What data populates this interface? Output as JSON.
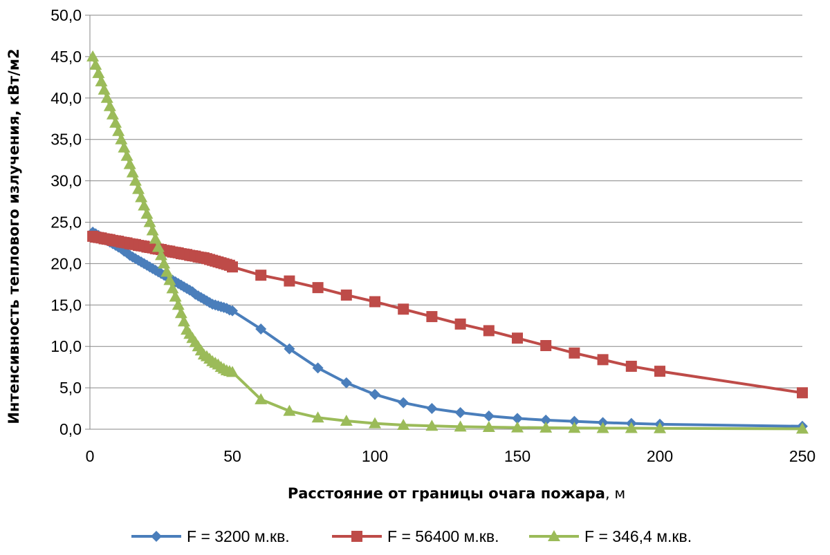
{
  "chart_data": {
    "type": "line",
    "title": "",
    "xlabel": "Расстояние от границы очага пожара",
    "xlabel_unit": ", м",
    "ylabel": "Интенсивность теплового излучения, кВт/м2",
    "xlim": [
      0,
      250
    ],
    "ylim": [
      0,
      50
    ],
    "x_ticks": [
      "0",
      "50",
      "100",
      "150",
      "200",
      "250"
    ],
    "y_ticks": [
      "0,0",
      "5,0",
      "10,0",
      "15,0",
      "20,0",
      "25,0",
      "30,0",
      "35,0",
      "40,0",
      "45,0",
      "50,0"
    ],
    "grid": "horizontal",
    "legend_position": "bottom",
    "series": [
      {
        "name": "F = 3200 м.кв.",
        "color": "#4a7ebb",
        "marker": "diamond",
        "x": [
          1,
          2,
          3,
          4,
          5,
          6,
          7,
          8,
          9,
          10,
          11,
          12,
          13,
          14,
          15,
          16,
          17,
          18,
          19,
          20,
          21,
          22,
          23,
          24,
          25,
          26,
          27,
          28,
          29,
          30,
          31,
          32,
          33,
          34,
          35,
          36,
          37,
          38,
          39,
          40,
          41,
          42,
          43,
          44,
          45,
          46,
          47,
          48,
          49,
          50,
          60,
          70,
          80,
          90,
          100,
          110,
          120,
          130,
          140,
          150,
          160,
          170,
          180,
          190,
          200,
          250
        ],
        "y": [
          23.8,
          23.6,
          23.4,
          23.2,
          23.0,
          22.8,
          22.6,
          22.4,
          22.2,
          22.0,
          21.8,
          21.5,
          21.3,
          21.0,
          20.8,
          20.6,
          20.4,
          20.2,
          20.0,
          19.8,
          19.6,
          19.4,
          19.2,
          19.0,
          18.8,
          18.6,
          18.4,
          18.2,
          18.0,
          17.8,
          17.6,
          17.4,
          17.2,
          17.0,
          16.8,
          16.6,
          16.3,
          16.1,
          15.9,
          15.7,
          15.5,
          15.3,
          15.1,
          15.0,
          14.9,
          14.8,
          14.7,
          14.6,
          14.4,
          14.3,
          12.1,
          9.7,
          7.4,
          5.6,
          4.2,
          3.2,
          2.5,
          2.0,
          1.6,
          1.3,
          1.1,
          0.95,
          0.8,
          0.7,
          0.6,
          0.35
        ]
      },
      {
        "name": "F = 56400 м.кв.",
        "color": "#be4b48",
        "marker": "square",
        "x": [
          1,
          2,
          3,
          4,
          5,
          6,
          7,
          8,
          9,
          10,
          11,
          12,
          13,
          14,
          15,
          16,
          17,
          18,
          19,
          20,
          21,
          22,
          23,
          24,
          25,
          26,
          27,
          28,
          29,
          30,
          31,
          32,
          33,
          34,
          35,
          36,
          37,
          38,
          39,
          40,
          41,
          42,
          43,
          44,
          45,
          46,
          47,
          48,
          49,
          50,
          60,
          70,
          80,
          90,
          100,
          110,
          120,
          130,
          140,
          150,
          160,
          170,
          180,
          190,
          200,
          250
        ],
        "y": [
          23.3,
          23.2,
          23.15,
          23.1,
          23.0,
          22.95,
          22.9,
          22.8,
          22.75,
          22.7,
          22.6,
          22.55,
          22.5,
          22.4,
          22.35,
          22.3,
          22.2,
          22.15,
          22.1,
          22.0,
          21.95,
          21.9,
          21.8,
          21.75,
          21.7,
          21.6,
          21.55,
          21.5,
          21.4,
          21.35,
          21.3,
          21.2,
          21.15,
          21.1,
          21.0,
          20.95,
          20.9,
          20.8,
          20.75,
          20.7,
          20.6,
          20.5,
          20.4,
          20.3,
          20.2,
          20.1,
          20.0,
          19.9,
          19.8,
          19.6,
          18.6,
          17.9,
          17.1,
          16.2,
          15.4,
          14.5,
          13.6,
          12.7,
          11.9,
          11.0,
          10.1,
          9.2,
          8.4,
          7.6,
          7.0,
          4.4
        ]
      },
      {
        "name": "F = 346,4 м.кв.",
        "color": "#9bbb59",
        "marker": "triangle",
        "x": [
          1,
          2,
          3,
          4,
          5,
          6,
          7,
          8,
          9,
          10,
          11,
          12,
          13,
          14,
          15,
          16,
          17,
          18,
          19,
          20,
          21,
          22,
          23,
          24,
          25,
          26,
          27,
          28,
          29,
          30,
          31,
          32,
          33,
          34,
          35,
          36,
          37,
          38,
          39,
          40,
          41,
          42,
          43,
          44,
          45,
          46,
          47,
          48,
          49,
          50,
          60,
          70,
          80,
          90,
          100,
          110,
          120,
          130,
          140,
          150,
          160,
          170,
          180,
          190,
          200,
          250
        ],
        "y": [
          45.0,
          44.0,
          43.0,
          42.0,
          41.0,
          40.0,
          39.0,
          38.0,
          37.0,
          36.0,
          35.0,
          34.0,
          33.0,
          32.0,
          31.0,
          30.0,
          29.0,
          28.0,
          27.0,
          26.0,
          25.0,
          24.0,
          23.0,
          22.0,
          21.0,
          20.0,
          19.0,
          18.0,
          17.0,
          16.0,
          15.0,
          14.0,
          13.0,
          12.0,
          11.5,
          11.0,
          10.5,
          10.0,
          9.5,
          9.0,
          8.8,
          8.5,
          8.2,
          8.0,
          7.8,
          7.5,
          7.3,
          7.1,
          7.0,
          6.9,
          3.6,
          2.2,
          1.4,
          1.0,
          0.7,
          0.5,
          0.4,
          0.3,
          0.25,
          0.2,
          0.18,
          0.15,
          0.13,
          0.12,
          0.1,
          0.05
        ]
      }
    ]
  }
}
